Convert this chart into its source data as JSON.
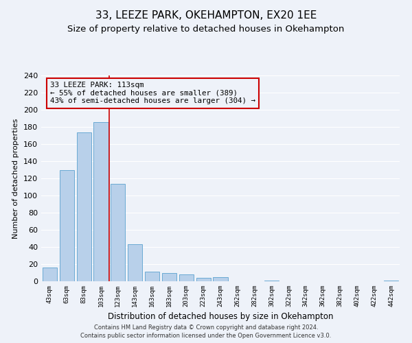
{
  "title": "33, LEEZE PARK, OKEHAMPTON, EX20 1EE",
  "subtitle": "Size of property relative to detached houses in Okehampton",
  "xlabel": "Distribution of detached houses by size in Okehampton",
  "ylabel": "Number of detached properties",
  "footer_line1": "Contains HM Land Registry data © Crown copyright and database right 2024.",
  "footer_line2": "Contains public sector information licensed under the Open Government Licence v3.0.",
  "bar_labels": [
    "43sqm",
    "63sqm",
    "83sqm",
    "103sqm",
    "123sqm",
    "143sqm",
    "163sqm",
    "183sqm",
    "203sqm",
    "223sqm",
    "243sqm",
    "262sqm",
    "282sqm",
    "302sqm",
    "322sqm",
    "342sqm",
    "362sqm",
    "382sqm",
    "402sqm",
    "422sqm",
    "442sqm"
  ],
  "bar_values": [
    16,
    130,
    174,
    186,
    114,
    43,
    11,
    10,
    8,
    4,
    5,
    0,
    0,
    1,
    0,
    0,
    0,
    0,
    0,
    0,
    1
  ],
  "bar_color": "#b8d0ea",
  "bar_edge_color": "#6aaad4",
  "annotation_box_text": "33 LEEZE PARK: 113sqm\n← 55% of detached houses are smaller (389)\n43% of semi-detached houses are larger (304) →",
  "annotation_box_edge_color": "#cc0000",
  "annotation_vline_color": "#cc0000",
  "vline_position": 3.5,
  "ylim": [
    0,
    240
  ],
  "yticks": [
    0,
    20,
    40,
    60,
    80,
    100,
    120,
    140,
    160,
    180,
    200,
    220,
    240
  ],
  "bg_color": "#eef2f9",
  "grid_color": "#ffffff",
  "title_fontsize": 11,
  "subtitle_fontsize": 9.5
}
